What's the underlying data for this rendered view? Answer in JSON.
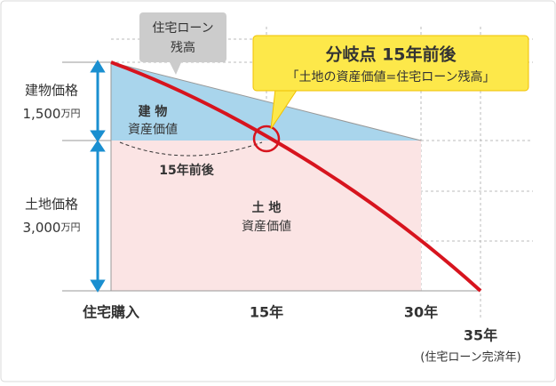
{
  "callouts": {
    "loan": [
      "住宅ローン",
      "残高"
    ],
    "breakpoint": {
      "title": "分岐点 15年前後",
      "subtitle": "「土地の資産価値=住宅ローン残高」"
    }
  },
  "left_labels": {
    "building": {
      "name": "建物価格",
      "amount": "1,500",
      "unit": "万円"
    },
    "land": {
      "name": "土地価格",
      "amount": "3,000",
      "unit": "万円"
    }
  },
  "areas": {
    "building": [
      "建 物",
      "資産価値"
    ],
    "land": [
      "土 地",
      "資産価値"
    ]
  },
  "curve_label": "15年前後",
  "x_labels": {
    "purchase": "住宅購入",
    "y15": "15年",
    "y30": "30年",
    "y35": "35年",
    "y35_note": "(住宅ローン完済年)"
  }
}
